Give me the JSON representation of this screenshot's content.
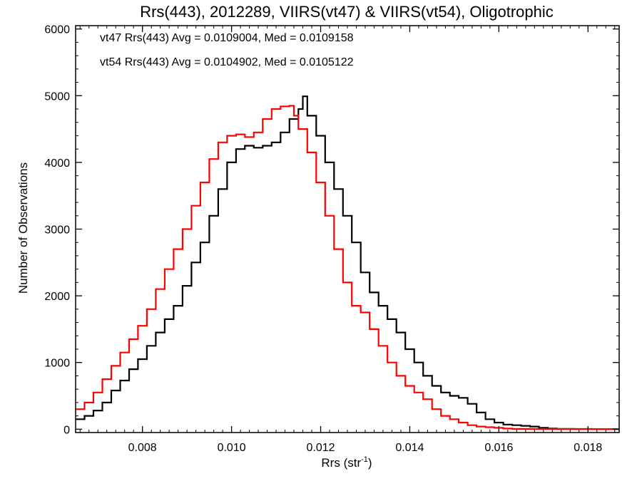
{
  "chart_data": {
    "type": "line",
    "step": true,
    "title": "Rrs(443), 2012289, VIIRS(vt47) & VIIRS(vt54), Oligotrophic",
    "xlabel_main": "Rrs (str",
    "xlabel_sup": "-1",
    "xlabel_close": ")",
    "ylabel": "Number of Observations",
    "xlim": [
      0.0065,
      0.0187
    ],
    "ylim": [
      -50,
      6050
    ],
    "xticks": [
      0.008,
      0.01,
      0.012,
      0.014,
      0.016,
      0.018
    ],
    "xtick_labels": [
      "0.008",
      "0.010",
      "0.012",
      "0.014",
      "0.016",
      "0.018"
    ],
    "yticks": [
      0,
      1000,
      2000,
      3000,
      4000,
      5000,
      6000
    ],
    "ytick_labels": [
      "0",
      "1000",
      "2000",
      "3000",
      "4000",
      "5000",
      "6000"
    ],
    "grid": false,
    "annotations": [
      {
        "text": "vt47 Rrs(443) Avg = 0.0109004, Med = 0.0109158",
        "color": "#000000"
      },
      {
        "text": "vt54 Rrs(443) Avg = 0.0104902, Med = 0.0105122",
        "color": "#ff0000"
      }
    ],
    "series": [
      {
        "color": "#000000",
        "points": [
          [
            0.0065,
            150
          ],
          [
            0.0067,
            200
          ],
          [
            0.0069,
            280
          ],
          [
            0.0071,
            400
          ],
          [
            0.0073,
            580
          ],
          [
            0.0075,
            730
          ],
          [
            0.0077,
            900
          ],
          [
            0.0079,
            1050
          ],
          [
            0.0081,
            1250
          ],
          [
            0.0083,
            1450
          ],
          [
            0.0085,
            1650
          ],
          [
            0.0087,
            1850
          ],
          [
            0.0089,
            2150
          ],
          [
            0.0091,
            2500
          ],
          [
            0.0093,
            2800
          ],
          [
            0.0095,
            3200
          ],
          [
            0.0097,
            3600
          ],
          [
            0.0099,
            4000
          ],
          [
            0.0101,
            4200
          ],
          [
            0.0103,
            4250
          ],
          [
            0.0105,
            4220
          ],
          [
            0.0107,
            4250
          ],
          [
            0.0109,
            4300
          ],
          [
            0.0111,
            4450
          ],
          [
            0.0113,
            4650
          ],
          [
            0.0115,
            4800
          ],
          [
            0.0116,
            4990
          ],
          [
            0.0117,
            4700
          ],
          [
            0.0119,
            4400
          ],
          [
            0.0121,
            4000
          ],
          [
            0.0123,
            3600
          ],
          [
            0.0125,
            3200
          ],
          [
            0.0127,
            2800
          ],
          [
            0.0129,
            2350
          ],
          [
            0.0131,
            2050
          ],
          [
            0.0133,
            1850
          ],
          [
            0.0135,
            1650
          ],
          [
            0.0137,
            1450
          ],
          [
            0.0139,
            1200
          ],
          [
            0.0141,
            1000
          ],
          [
            0.0143,
            800
          ],
          [
            0.0145,
            650
          ],
          [
            0.0147,
            550
          ],
          [
            0.0149,
            500
          ],
          [
            0.0151,
            470
          ],
          [
            0.0153,
            380
          ],
          [
            0.0155,
            250
          ],
          [
            0.0157,
            150
          ],
          [
            0.0159,
            100
          ],
          [
            0.0161,
            70
          ],
          [
            0.0163,
            60
          ],
          [
            0.0165,
            50
          ],
          [
            0.0167,
            40
          ],
          [
            0.0169,
            20
          ],
          [
            0.0171,
            10
          ],
          [
            0.0173,
            5
          ],
          [
            0.0177,
            3
          ],
          [
            0.0181,
            2
          ],
          [
            0.0187,
            1
          ]
        ]
      },
      {
        "color": "#ff0000",
        "points": [
          [
            0.0065,
            300
          ],
          [
            0.0067,
            400
          ],
          [
            0.0069,
            550
          ],
          [
            0.0071,
            750
          ],
          [
            0.0073,
            950
          ],
          [
            0.0075,
            1150
          ],
          [
            0.0077,
            1350
          ],
          [
            0.0079,
            1550
          ],
          [
            0.0081,
            1800
          ],
          [
            0.0083,
            2100
          ],
          [
            0.0085,
            2400
          ],
          [
            0.0087,
            2700
          ],
          [
            0.0089,
            3000
          ],
          [
            0.0091,
            3350
          ],
          [
            0.0093,
            3700
          ],
          [
            0.0095,
            4050
          ],
          [
            0.0097,
            4300
          ],
          [
            0.0099,
            4400
          ],
          [
            0.0101,
            4420
          ],
          [
            0.0103,
            4380
          ],
          [
            0.0105,
            4450
          ],
          [
            0.0107,
            4650
          ],
          [
            0.0109,
            4800
          ],
          [
            0.0111,
            4840
          ],
          [
            0.0113,
            4850
          ],
          [
            0.0114,
            4700
          ],
          [
            0.0115,
            4500
          ],
          [
            0.0117,
            4150
          ],
          [
            0.0119,
            3700
          ],
          [
            0.0121,
            3200
          ],
          [
            0.0123,
            2700
          ],
          [
            0.0125,
            2200
          ],
          [
            0.0127,
            1850
          ],
          [
            0.0129,
            1750
          ],
          [
            0.0131,
            1500
          ],
          [
            0.0133,
            1250
          ],
          [
            0.0135,
            1000
          ],
          [
            0.0137,
            800
          ],
          [
            0.0139,
            650
          ],
          [
            0.0141,
            550
          ],
          [
            0.0143,
            450
          ],
          [
            0.0145,
            300
          ],
          [
            0.0147,
            200
          ],
          [
            0.0149,
            150
          ],
          [
            0.0151,
            100
          ],
          [
            0.0153,
            60
          ],
          [
            0.0155,
            40
          ],
          [
            0.0157,
            30
          ],
          [
            0.0159,
            20
          ],
          [
            0.0161,
            10
          ],
          [
            0.0163,
            5
          ],
          [
            0.0167,
            3
          ],
          [
            0.0173,
            2
          ],
          [
            0.0187,
            1
          ]
        ]
      }
    ]
  }
}
